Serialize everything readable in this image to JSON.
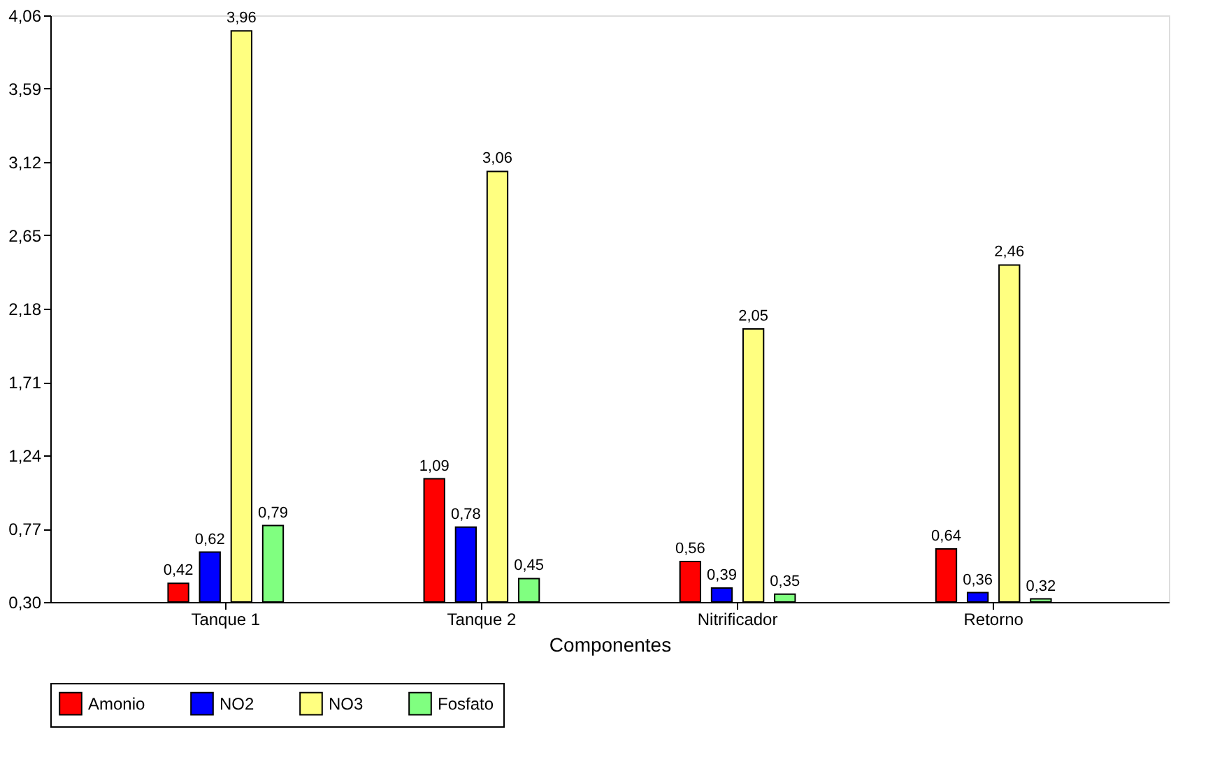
{
  "chart_data": {
    "type": "bar",
    "xlabel": "Componentes",
    "categories": [
      "Tanque 1",
      "Tanque 2",
      "Nitrificador",
      "Retorno"
    ],
    "series": [
      {
        "name": "Amonio",
        "color": "#ff0000",
        "values": [
          0.42,
          1.09,
          0.56,
          0.64
        ],
        "value_labels": [
          "0,42",
          "1,09",
          "0,56",
          "0,64"
        ]
      },
      {
        "name": "NO2",
        "color": "#0000ff",
        "values": [
          0.62,
          0.78,
          0.39,
          0.36
        ],
        "value_labels": [
          "0,62",
          "0,78",
          "0,39",
          "0,36"
        ]
      },
      {
        "name": "NO3",
        "color": "#ffff80",
        "values": [
          3.96,
          3.06,
          2.05,
          2.46
        ],
        "value_labels": [
          "3,96",
          "3,06",
          "2,05",
          "2,46"
        ]
      },
      {
        "name": "Fosfato",
        "color": "#80ff80",
        "values": [
          0.79,
          0.45,
          0.35,
          0.32
        ],
        "value_labels": [
          "0,79",
          "0,45",
          "0,35",
          "0,32"
        ]
      }
    ],
    "ylim": [
      0.3,
      4.06
    ],
    "yticks": [
      {
        "value": 0.3,
        "label": "0,30"
      },
      {
        "value": 0.77,
        "label": "0,77"
      },
      {
        "value": 1.24,
        "label": "1,24"
      },
      {
        "value": 1.71,
        "label": "1,71"
      },
      {
        "value": 2.18,
        "label": "2,18"
      },
      {
        "value": 2.65,
        "label": "2,65"
      },
      {
        "value": 3.12,
        "label": "3,12"
      },
      {
        "value": 3.59,
        "label": "3,59"
      },
      {
        "value": 4.06,
        "label": "4,06"
      }
    ],
    "grid": false,
    "legend": "bottom"
  }
}
